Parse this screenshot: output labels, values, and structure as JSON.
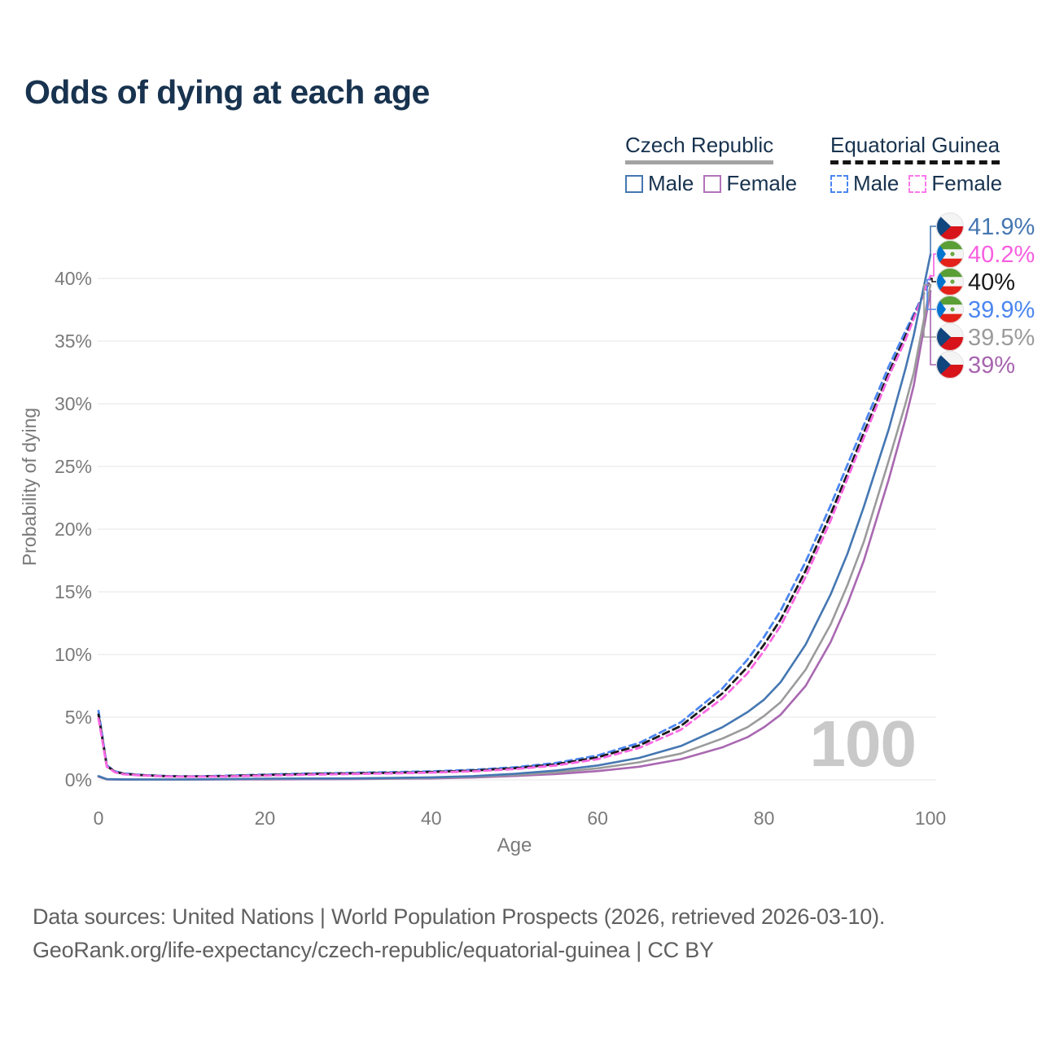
{
  "title": "Odds of dying at each age",
  "legend": {
    "groups": [
      {
        "label": "Czech Republic",
        "underline_style": "solid",
        "underline_color": "#a3a3a3",
        "items": [
          {
            "label": "Male",
            "color": "#4577b2",
            "dash": false
          },
          {
            "label": "Female",
            "color": "#b273ba",
            "dash": false
          }
        ]
      },
      {
        "label": "Equatorial Guinea",
        "underline_style": "dashed",
        "underline_color": "#141414",
        "items": [
          {
            "label": "Male",
            "color": "#4c86f0",
            "dash": true
          },
          {
            "label": "Female",
            "color": "#fb79ea",
            "dash": true
          }
        ]
      }
    ]
  },
  "chart_data": {
    "type": "line",
    "title": "Odds of dying at each age",
    "xlabel": "Age",
    "ylabel": "Probability of dying",
    "xlim": [
      0,
      100
    ],
    "ylim_pct": [
      0,
      43
    ],
    "grid": "horizontal",
    "xticks": [
      0,
      20,
      40,
      60,
      80,
      100
    ],
    "xtick_labels": [
      "0",
      "20",
      "40",
      "60",
      "80",
      "100"
    ],
    "yticks_pct": [
      0,
      5,
      10,
      15,
      20,
      25,
      30,
      35,
      40
    ],
    "ytick_labels": [
      "0%",
      "5%",
      "10%",
      "15%",
      "20%",
      "25%",
      "30%",
      "35%",
      "40%"
    ],
    "watermark": "100",
    "series": [
      {
        "id": "eqgui_male",
        "name": "Equatorial Guinea Male",
        "color": "#4c86f0",
        "dash": true,
        "flag": "gq",
        "points_age_pct": [
          [
            0,
            5.5
          ],
          [
            1,
            1.15
          ],
          [
            2,
            0.68
          ],
          [
            3,
            0.52
          ],
          [
            5,
            0.4
          ],
          [
            8,
            0.31
          ],
          [
            10,
            0.28
          ],
          [
            13,
            0.3
          ],
          [
            15,
            0.33
          ],
          [
            18,
            0.38
          ],
          [
            20,
            0.42
          ],
          [
            25,
            0.5
          ],
          [
            30,
            0.55
          ],
          [
            35,
            0.61
          ],
          [
            40,
            0.68
          ],
          [
            45,
            0.8
          ],
          [
            50,
            1.0
          ],
          [
            55,
            1.35
          ],
          [
            60,
            1.95
          ],
          [
            65,
            2.95
          ],
          [
            70,
            4.6
          ],
          [
            75,
            7.3
          ],
          [
            78,
            9.6
          ],
          [
            80,
            11.4
          ],
          [
            82,
            13.5
          ],
          [
            85,
            17.4
          ],
          [
            88,
            21.9
          ],
          [
            90,
            25.1
          ],
          [
            92,
            28.3
          ],
          [
            95,
            33.0
          ],
          [
            97,
            35.8
          ],
          [
            100,
            39.9
          ]
        ]
      },
      {
        "id": "eqgui_both",
        "name": "Equatorial Guinea",
        "color": "#1a1a1a",
        "dash": true,
        "flag": "gq",
        "points_age_pct": [
          [
            0,
            5.2
          ],
          [
            1,
            1.1
          ],
          [
            2,
            0.64
          ],
          [
            3,
            0.49
          ],
          [
            5,
            0.38
          ],
          [
            8,
            0.29
          ],
          [
            10,
            0.27
          ],
          [
            13,
            0.28
          ],
          [
            15,
            0.3
          ],
          [
            18,
            0.35
          ],
          [
            20,
            0.38
          ],
          [
            25,
            0.46
          ],
          [
            30,
            0.51
          ],
          [
            35,
            0.56
          ],
          [
            40,
            0.63
          ],
          [
            45,
            0.74
          ],
          [
            50,
            0.93
          ],
          [
            55,
            1.25
          ],
          [
            60,
            1.8
          ],
          [
            65,
            2.75
          ],
          [
            70,
            4.3
          ],
          [
            75,
            6.9
          ],
          [
            78,
            9.0
          ],
          [
            80,
            10.8
          ],
          [
            82,
            12.8
          ],
          [
            85,
            16.7
          ],
          [
            88,
            21.2
          ],
          [
            90,
            24.4
          ],
          [
            92,
            27.7
          ],
          [
            95,
            32.5
          ],
          [
            97,
            35.4
          ],
          [
            100,
            40.0
          ]
        ]
      },
      {
        "id": "eqgui_female",
        "name": "Equatorial Guinea Female",
        "color": "#f968e2",
        "dash": true,
        "flag": "gq",
        "points_age_pct": [
          [
            0,
            4.9
          ],
          [
            1,
            1.05
          ],
          [
            2,
            0.6
          ],
          [
            3,
            0.45
          ],
          [
            5,
            0.36
          ],
          [
            8,
            0.27
          ],
          [
            10,
            0.25
          ],
          [
            13,
            0.26
          ],
          [
            15,
            0.27
          ],
          [
            18,
            0.31
          ],
          [
            20,
            0.34
          ],
          [
            25,
            0.41
          ],
          [
            30,
            0.46
          ],
          [
            35,
            0.51
          ],
          [
            40,
            0.58
          ],
          [
            45,
            0.68
          ],
          [
            50,
            0.86
          ],
          [
            55,
            1.15
          ],
          [
            60,
            1.65
          ],
          [
            65,
            2.55
          ],
          [
            70,
            4.0
          ],
          [
            75,
            6.5
          ],
          [
            78,
            8.5
          ],
          [
            80,
            10.3
          ],
          [
            82,
            12.3
          ],
          [
            85,
            16.2
          ],
          [
            88,
            20.7
          ],
          [
            90,
            24.0
          ],
          [
            92,
            27.3
          ],
          [
            95,
            32.2
          ],
          [
            97,
            35.1
          ],
          [
            100,
            40.2
          ]
        ]
      },
      {
        "id": "czech_female",
        "name": "Czech Republic Female",
        "color": "#a968b1",
        "dash": false,
        "flag": "cz",
        "points_age_pct": [
          [
            0,
            0.25
          ],
          [
            1,
            0.04
          ],
          [
            3,
            0.02
          ],
          [
            5,
            0.02
          ],
          [
            10,
            0.02
          ],
          [
            15,
            0.03
          ],
          [
            20,
            0.04
          ],
          [
            25,
            0.05
          ],
          [
            30,
            0.06
          ],
          [
            35,
            0.09
          ],
          [
            40,
            0.12
          ],
          [
            45,
            0.19
          ],
          [
            50,
            0.31
          ],
          [
            55,
            0.47
          ],
          [
            60,
            0.7
          ],
          [
            65,
            1.05
          ],
          [
            70,
            1.65
          ],
          [
            75,
            2.6
          ],
          [
            78,
            3.4
          ],
          [
            80,
            4.2
          ],
          [
            82,
            5.2
          ],
          [
            85,
            7.5
          ],
          [
            88,
            11.0
          ],
          [
            90,
            14.0
          ],
          [
            92,
            17.5
          ],
          [
            95,
            24.0
          ],
          [
            97,
            28.8
          ],
          [
            98,
            31.5
          ],
          [
            100,
            39.0
          ]
        ]
      },
      {
        "id": "czech_both",
        "name": "Czech Republic",
        "color": "#9b9b9b",
        "dash": false,
        "flag": "cz",
        "points_age_pct": [
          [
            0,
            0.28
          ],
          [
            1,
            0.05
          ],
          [
            3,
            0.03
          ],
          [
            5,
            0.025
          ],
          [
            10,
            0.025
          ],
          [
            15,
            0.05
          ],
          [
            20,
            0.08
          ],
          [
            25,
            0.09
          ],
          [
            30,
            0.1
          ],
          [
            35,
            0.12
          ],
          [
            40,
            0.16
          ],
          [
            45,
            0.25
          ],
          [
            50,
            0.39
          ],
          [
            55,
            0.6
          ],
          [
            60,
            0.92
          ],
          [
            65,
            1.4
          ],
          [
            70,
            2.1
          ],
          [
            75,
            3.3
          ],
          [
            78,
            4.2
          ],
          [
            80,
            5.1
          ],
          [
            82,
            6.2
          ],
          [
            85,
            8.8
          ],
          [
            88,
            12.4
          ],
          [
            90,
            15.5
          ],
          [
            92,
            19.0
          ],
          [
            95,
            25.5
          ],
          [
            97,
            30.0
          ],
          [
            98,
            32.5
          ],
          [
            100,
            39.5
          ]
        ]
      },
      {
        "id": "czech_male",
        "name": "Czech Republic Male",
        "color": "#4577b2",
        "dash": false,
        "flag": "cz",
        "points_age_pct": [
          [
            0,
            0.3
          ],
          [
            1,
            0.06
          ],
          [
            3,
            0.04
          ],
          [
            5,
            0.03
          ],
          [
            10,
            0.03
          ],
          [
            15,
            0.06
          ],
          [
            20,
            0.1
          ],
          [
            25,
            0.11
          ],
          [
            30,
            0.12
          ],
          [
            35,
            0.15
          ],
          [
            40,
            0.2
          ],
          [
            45,
            0.3
          ],
          [
            50,
            0.48
          ],
          [
            55,
            0.75
          ],
          [
            60,
            1.15
          ],
          [
            65,
            1.75
          ],
          [
            70,
            2.7
          ],
          [
            75,
            4.2
          ],
          [
            78,
            5.4
          ],
          [
            80,
            6.4
          ],
          [
            82,
            7.8
          ],
          [
            85,
            10.8
          ],
          [
            88,
            14.8
          ],
          [
            90,
            18.0
          ],
          [
            92,
            21.8
          ],
          [
            95,
            28.0
          ],
          [
            97,
            32.8
          ],
          [
            98,
            35.5
          ],
          [
            100,
            41.9
          ]
        ]
      }
    ],
    "end_labels": [
      {
        "series": "czech_male",
        "value": "41.9%",
        "color": "#4577b2",
        "flag": "cz"
      },
      {
        "series": "eqgui_female",
        "value": "40.2%",
        "color": "#f75fe0",
        "flag": "gq"
      },
      {
        "series": "eqgui_both",
        "value": "40%",
        "color": "#1a1a1a",
        "flag": "gq"
      },
      {
        "series": "eqgui_male",
        "value": "39.9%",
        "color": "#4c86f0",
        "flag": "gq"
      },
      {
        "series": "czech_both",
        "value": "39.5%",
        "color": "#9b9b9b",
        "flag": "cz"
      },
      {
        "series": "czech_female",
        "value": "39%",
        "color": "#a765af",
        "flag": "cz"
      }
    ]
  },
  "footer": {
    "line1": "Data sources: United Nations | World Population Prospects (2026, retrieved 2026-03-10).",
    "line2": "GeoRank.org/life-expectancy/czech-republic/equatorial-guinea | CC BY"
  }
}
